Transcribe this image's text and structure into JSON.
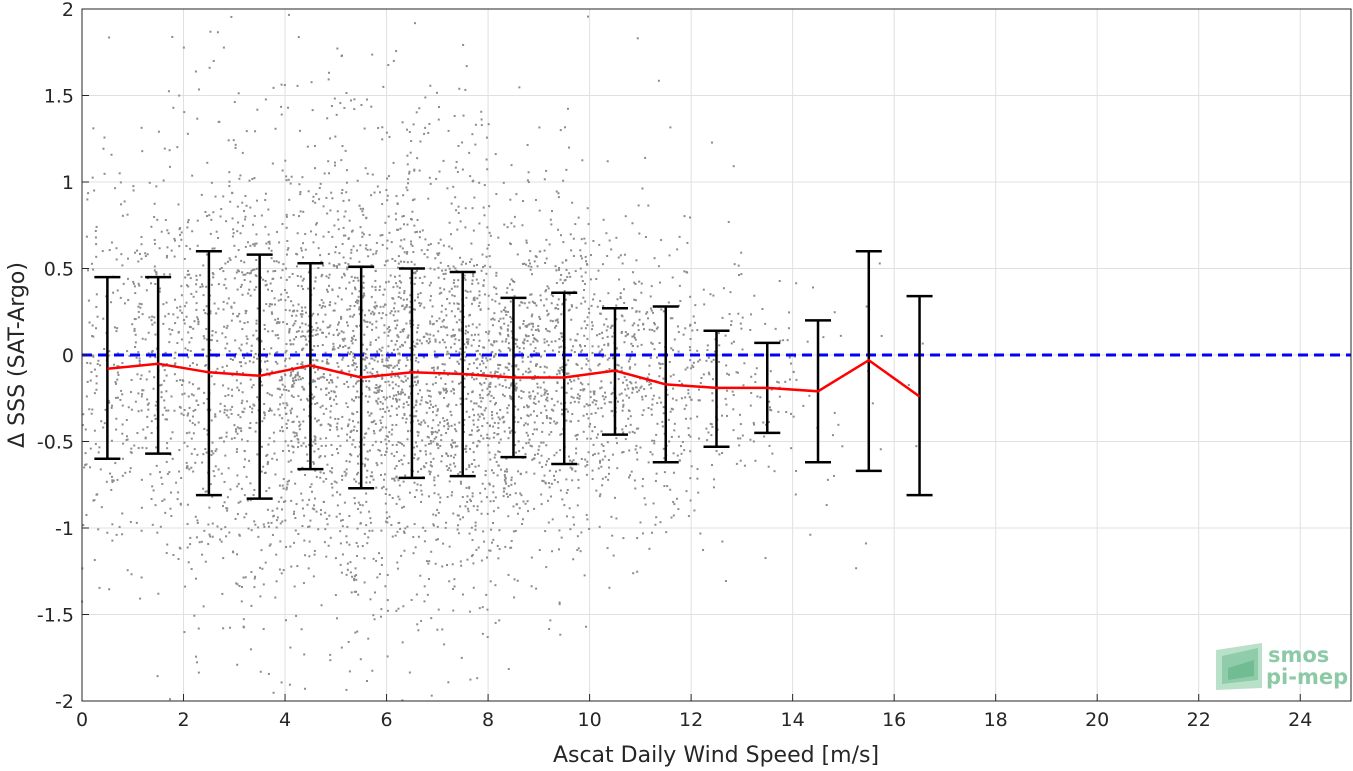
{
  "chart_data": {
    "type": "scatter",
    "xlabel": "Ascat Daily Wind Speed [m/s]",
    "ylabel": "Δ SSS (SAT-Argo)",
    "xlim": [
      0,
      25
    ],
    "ylim": [
      -2,
      2
    ],
    "xticks": [
      "0",
      "2",
      "4",
      "6",
      "8",
      "10",
      "12",
      "14",
      "16",
      "18",
      "20",
      "22",
      "24"
    ],
    "yticks": [
      "-2",
      "-1.5",
      "-1",
      "-0.5",
      "0",
      "0.5",
      "1",
      "1.5",
      "2"
    ],
    "grid": true,
    "reference_line": {
      "y": 0,
      "color": "#0000ff",
      "style": "dashed"
    },
    "scatter_color": "#8c8c8c",
    "mean_color": "#ff0000",
    "errorbar_color": "#000000",
    "bins": [
      {
        "x": 0.5,
        "mean": -0.08,
        "upper": 0.45,
        "lower": -0.6
      },
      {
        "x": 1.5,
        "mean": -0.05,
        "upper": 0.45,
        "lower": -0.57
      },
      {
        "x": 2.5,
        "mean": -0.1,
        "upper": 0.6,
        "lower": -0.81
      },
      {
        "x": 3.5,
        "mean": -0.12,
        "upper": 0.58,
        "lower": -0.83
      },
      {
        "x": 4.5,
        "mean": -0.06,
        "upper": 0.53,
        "lower": -0.66
      },
      {
        "x": 5.5,
        "mean": -0.13,
        "upper": 0.51,
        "lower": -0.77
      },
      {
        "x": 6.5,
        "mean": -0.1,
        "upper": 0.5,
        "lower": -0.71
      },
      {
        "x": 7.5,
        "mean": -0.11,
        "upper": 0.48,
        "lower": -0.7
      },
      {
        "x": 8.5,
        "mean": -0.13,
        "upper": 0.33,
        "lower": -0.59
      },
      {
        "x": 9.5,
        "mean": -0.13,
        "upper": 0.36,
        "lower": -0.63
      },
      {
        "x": 10.5,
        "mean": -0.09,
        "upper": 0.27,
        "lower": -0.46
      },
      {
        "x": 11.5,
        "mean": -0.17,
        "upper": 0.28,
        "lower": -0.62
      },
      {
        "x": 12.5,
        "mean": -0.19,
        "upper": 0.14,
        "lower": -0.53
      },
      {
        "x": 13.5,
        "mean": -0.19,
        "upper": 0.07,
        "lower": -0.45
      },
      {
        "x": 14.5,
        "mean": -0.21,
        "upper": 0.2,
        "lower": -0.62
      },
      {
        "x": 15.5,
        "mean": -0.03,
        "upper": 0.6,
        "lower": -0.67
      },
      {
        "x": 16.5,
        "mean": -0.24,
        "upper": 0.34,
        "lower": -0.81
      }
    ]
  },
  "logo": {
    "line1": "smos",
    "line2": "pi-mep"
  }
}
